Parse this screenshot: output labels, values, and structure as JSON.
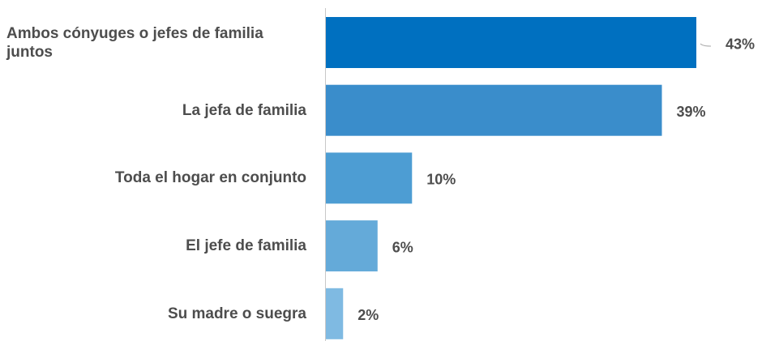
{
  "chart_data": {
    "type": "bar",
    "orientation": "horizontal",
    "categories": [
      "Ambos cónyuges o jefes de familia juntos",
      "La jefa de familia",
      "Toda el hogar en conjunto",
      "El jefe de familia",
      "Su madre o suegra"
    ],
    "values": [
      43,
      39,
      10,
      6,
      2
    ],
    "value_labels": [
      "43%",
      "39%",
      "10%",
      "6%",
      "2%"
    ],
    "colors": [
      "#0070c0",
      "#3a8dcb",
      "#4d9dd3",
      "#64aad9",
      "#7fbae2"
    ]
  }
}
